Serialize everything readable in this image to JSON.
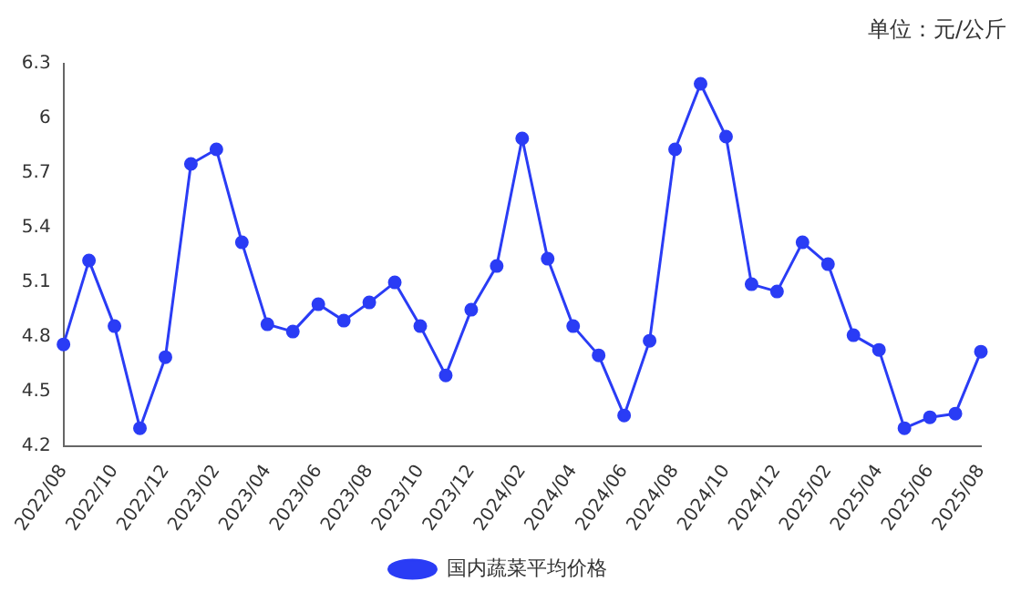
{
  "chart_data": {
    "type": "line",
    "ylabel": "单位：元/公斤",
    "categories": [
      "2022/08",
      null,
      "2022/10",
      null,
      "2022/12",
      null,
      "2023/02",
      null,
      "2023/04",
      null,
      "2023/06",
      null,
      "2023/08",
      null,
      "2023/10",
      null,
      "2023/12",
      null,
      "2024/02",
      null,
      "2024/04",
      null,
      "2024/06",
      null,
      "2024/08",
      null,
      "2024/10",
      null,
      "2024/12",
      null,
      "2025/02",
      null,
      "2025/04",
      null,
      "2025/06",
      null,
      "2025/08"
    ],
    "series": [
      {
        "name": "国内蔬菜平均价格",
        "color": "#2a3cf5",
        "values": [
          4.76,
          5.22,
          4.86,
          4.3,
          4.69,
          5.75,
          5.83,
          5.32,
          4.87,
          4.83,
          4.98,
          4.89,
          4.99,
          5.1,
          4.86,
          4.59,
          4.95,
          5.19,
          5.89,
          5.23,
          4.86,
          4.7,
          4.37,
          4.78,
          5.83,
          6.19,
          5.9,
          5.09,
          5.05,
          5.32,
          5.2,
          4.81,
          4.73,
          4.3,
          4.36,
          4.38,
          4.72
        ]
      }
    ],
    "ylim": [
      4.2,
      6.3
    ],
    "yticks": [
      4.2,
      4.5,
      4.8,
      5.1,
      5.4,
      5.7,
      6,
      6.3
    ],
    "grid": false,
    "legend": "bottom",
    "marker": "circle",
    "line_style": "solid"
  }
}
